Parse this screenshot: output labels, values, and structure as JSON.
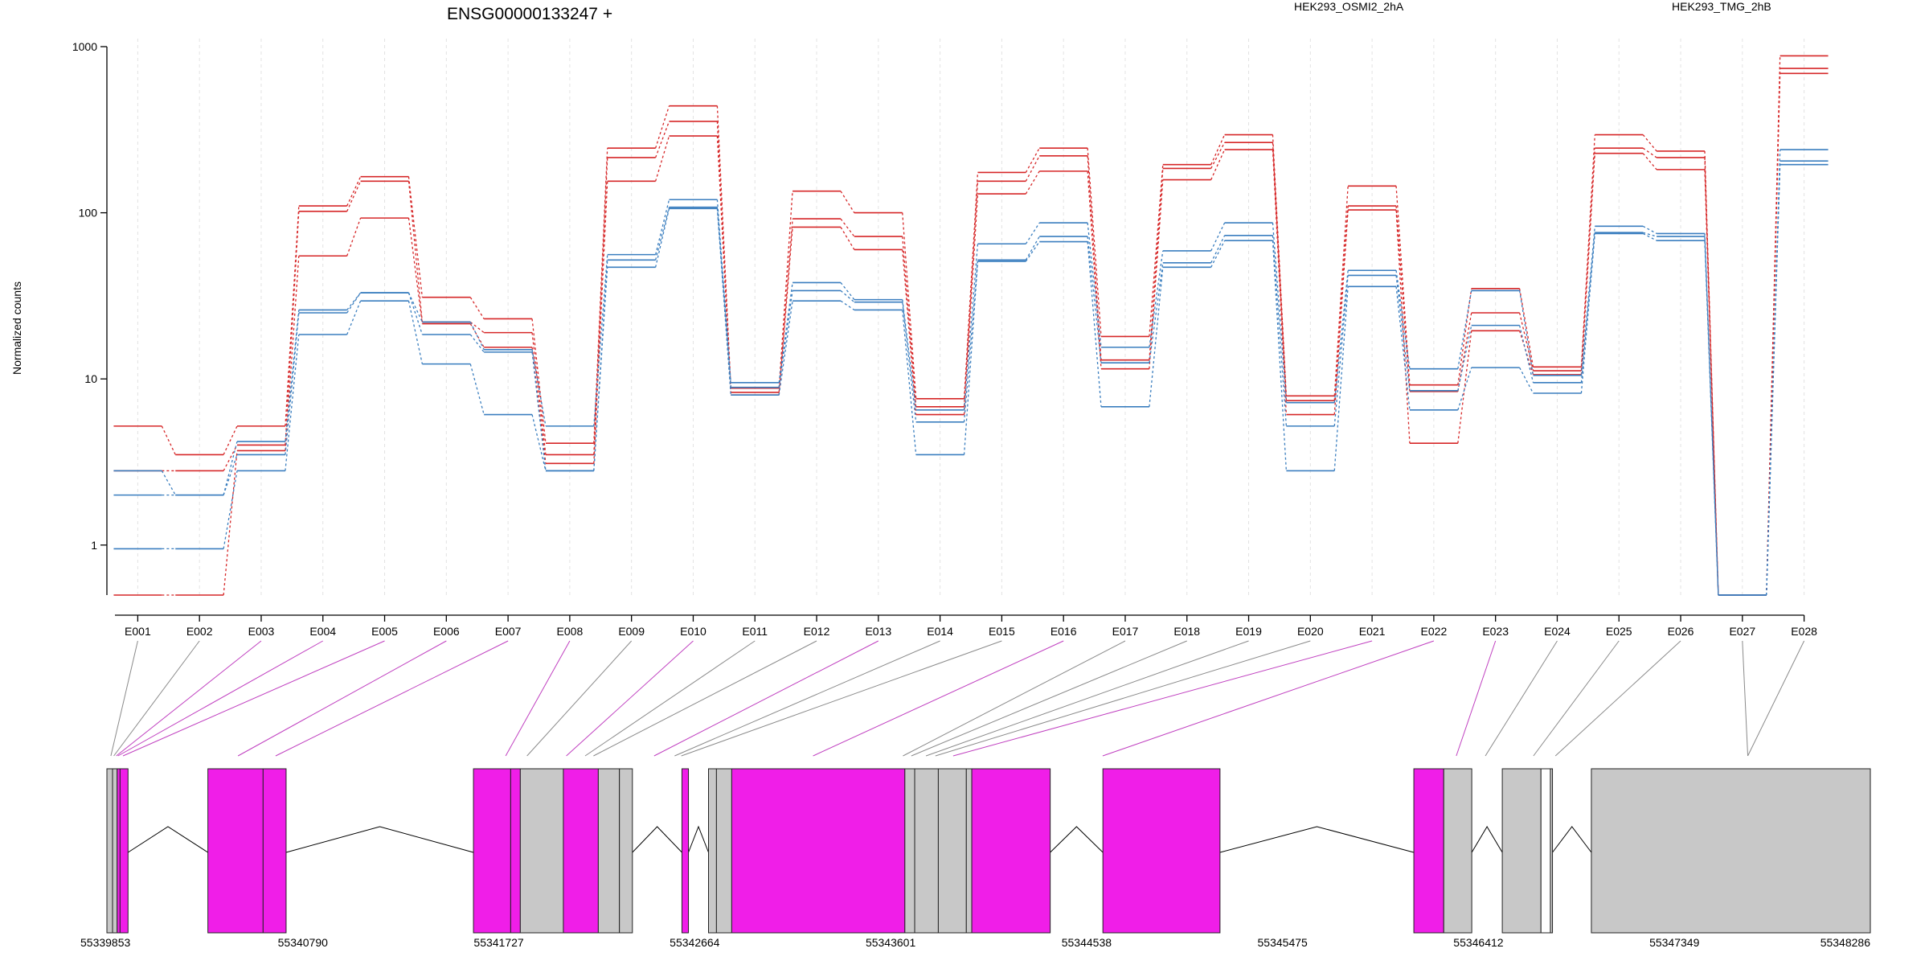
{
  "chart_data": {
    "type": "line",
    "title": "ENSG00000133247 +",
    "ylabel": "Normalized counts",
    "yscale": "log",
    "ylim": [
      0.5,
      1000
    ],
    "yticks": [
      1,
      10,
      100,
      1000
    ],
    "categories": [
      "E001",
      "E002",
      "E003",
      "E004",
      "E005",
      "E006",
      "E007",
      "E008",
      "E009",
      "E010",
      "E011",
      "E012",
      "E013",
      "E014",
      "E015",
      "E016",
      "E017",
      "E018",
      "E019",
      "E020",
      "E021",
      "E022",
      "E023",
      "E024",
      "E025",
      "E026",
      "E027",
      "E028"
    ],
    "legend": [
      {
        "name": "HEK293_OSMI2_2hA",
        "color": "#d62728",
        "position": "top-center"
      },
      {
        "name": "HEK293_TMG_2hB",
        "color": "#3a7ebf",
        "position": "top-right"
      }
    ],
    "series": [
      {
        "group": "HEK293_OSMI2_2hA",
        "color": "#d62728",
        "values": [
          5.2,
          3.5,
          5.2,
          110,
          165,
          31,
          23,
          4.1,
          245,
          440,
          8.8,
          135,
          100,
          7.6,
          175,
          245,
          18,
          195,
          295,
          7.9,
          145,
          9.2,
          35,
          11.8,
          295,
          235,
          0.5,
          880
        ]
      },
      {
        "group": "HEK293_OSMI2_2hA",
        "color": "#d62728",
        "values": [
          2.8,
          2.8,
          4.0,
          102,
          155,
          22,
          19,
          3.5,
          215,
          355,
          8.3,
          92,
          72,
          6.8,
          155,
          220,
          13,
          185,
          265,
          7.4,
          110,
          8.4,
          25,
          11.2,
          245,
          215,
          0.5,
          740
        ]
      },
      {
        "group": "HEK293_OSMI2_2hA",
        "color": "#d62728",
        "values": [
          0.5,
          0.5,
          3.7,
          55,
          93,
          21.5,
          15.5,
          3.1,
          155,
          290,
          8.0,
          82,
          60,
          6.1,
          130,
          178,
          11.5,
          158,
          240,
          6.1,
          104,
          4.1,
          19.5,
          10.6,
          228,
          182,
          0.5,
          690
        ]
      },
      {
        "group": "HEK293_TMG_2hB",
        "color": "#3a7ebf",
        "values": [
          2.8,
          2.0,
          4.2,
          26,
          33,
          22,
          15,
          5.2,
          56,
          120,
          9.5,
          38,
          30,
          6.5,
          65,
          87,
          15.5,
          59,
          87,
          7.2,
          45,
          11.5,
          34,
          10.5,
          83,
          75,
          0.5,
          240
        ]
      },
      {
        "group": "HEK293_TMG_2hB",
        "color": "#3a7ebf",
        "values": [
          2.0,
          2.0,
          3.5,
          25,
          33,
          18.5,
          14.5,
          2.8,
          52,
          108,
          8.9,
          34,
          29,
          5.5,
          52,
          72,
          12.5,
          50,
          73,
          5.2,
          42,
          8.5,
          21,
          9.5,
          76,
          72,
          0.5,
          205
        ]
      },
      {
        "group": "HEK293_TMG_2hB",
        "color": "#3a7ebf",
        "values": [
          0.95,
          0.95,
          2.8,
          18.5,
          29.5,
          12.3,
          6.1,
          2.8,
          47,
          106,
          8.0,
          29.5,
          26,
          3.5,
          51,
          67,
          6.8,
          47,
          68,
          2.8,
          36,
          6.5,
          11.7,
          8.2,
          75,
          68,
          0.5,
          195
        ]
      }
    ],
    "gene_model": {
      "coordinate_labels": [
        "55339853",
        "55340790",
        "55341727",
        "55342664",
        "55343601",
        "55344538",
        "55345475",
        "55346412",
        "55347349",
        "55348286"
      ],
      "range": [
        55339853,
        55348286
      ],
      "exon_colors": {
        "tested_significant": "#f01ee8",
        "tested": "#c8c8c8",
        "other": "#ffffff"
      },
      "exons": [
        {
          "id": "E001",
          "start": 55339853,
          "end": 55339880,
          "kind": "tested"
        },
        {
          "id": "E002",
          "start": 55339880,
          "end": 55339902,
          "kind": "tested"
        },
        {
          "id": "E003",
          "start": 55339902,
          "end": 55339916,
          "kind": "tested_significant"
        },
        {
          "id": "E004",
          "start": 55339916,
          "end": 55339954,
          "kind": "tested_significant"
        },
        {
          "id": "E005",
          "start": 55340336,
          "end": 55340600,
          "kind": "tested_significant"
        },
        {
          "id": "E006",
          "start": 55340600,
          "end": 55340710,
          "kind": "tested_significant"
        },
        {
          "id": "E007",
          "start": 55341606,
          "end": 55341784,
          "kind": "tested_significant"
        },
        {
          "id": "E008",
          "start": 55341784,
          "end": 55341830,
          "kind": "tested_significant"
        },
        {
          "id": "E009",
          "start": 55341830,
          "end": 55342036,
          "kind": "tested"
        },
        {
          "id": "E010",
          "start": 55342036,
          "end": 55342203,
          "kind": "tested_significant"
        },
        {
          "id": "E011",
          "start": 55342203,
          "end": 55342304,
          "kind": "tested"
        },
        {
          "id": "E012",
          "start": 55342304,
          "end": 55342366,
          "kind": "tested"
        },
        {
          "id": "E013",
          "start": 55342603,
          "end": 55342634,
          "kind": "tested_significant"
        },
        {
          "id": "E014",
          "start": 55342730,
          "end": 55342768,
          "kind": "tested"
        },
        {
          "id": "E015",
          "start": 55342768,
          "end": 55342841,
          "kind": "tested"
        },
        {
          "id": "E016",
          "start": 55342841,
          "end": 55343669,
          "kind": "tested_significant"
        },
        {
          "id": "E017",
          "start": 55343669,
          "end": 55343716,
          "kind": "tested"
        },
        {
          "id": "E018",
          "start": 55343716,
          "end": 55343829,
          "kind": "tested"
        },
        {
          "id": "E019",
          "start": 55343829,
          "end": 55343963,
          "kind": "tested"
        },
        {
          "id": "E020",
          "start": 55343963,
          "end": 55343989,
          "kind": "tested"
        },
        {
          "id": "E021",
          "start": 55343989,
          "end": 55344364,
          "kind": "tested_significant"
        },
        {
          "id": "E022",
          "start": 55344616,
          "end": 55345176,
          "kind": "tested_significant"
        },
        {
          "id": "E023",
          "start": 55346103,
          "end": 55346246,
          "kind": "tested_significant"
        },
        {
          "id": "E024",
          "start": 55346246,
          "end": 55346380,
          "kind": "tested"
        },
        {
          "id": "E025",
          "start": 55346526,
          "end": 55346711,
          "kind": "tested"
        },
        {
          "id": "E026",
          "start": 55346711,
          "end": 55346756,
          "kind": "other"
        },
        {
          "id": "E027",
          "start": 55346756,
          "end": 55346766,
          "kind": "tested"
        },
        {
          "id": "E028",
          "start": 55346952,
          "end": 55348286,
          "kind": "tested"
        }
      ],
      "connector_anchor_genomic": [
        55339872,
        55339886,
        55339898,
        55339906,
        55339930,
        55340480,
        55340660,
        55341760,
        55341862,
        55342050,
        55342140,
        55342180,
        55342470,
        55342568,
        55342600,
        55343230,
        55343660,
        55343700,
        55343770,
        55343815,
        55343900,
        55344615,
        55346306,
        55346445,
        55346675,
        55346780,
        55347700,
        55347700
      ]
    }
  }
}
